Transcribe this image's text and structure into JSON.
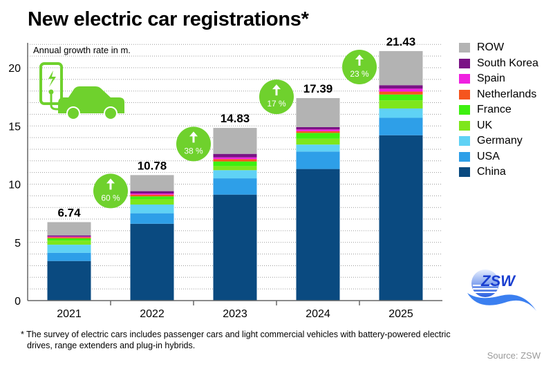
{
  "header": {
    "title": "New electric car registrations*"
  },
  "chart_data": {
    "type": "bar",
    "stacked": true,
    "title": "New electric car registrations*",
    "subtitle": "Annual growth rate in m.",
    "xlabel": "",
    "ylabel": "Annual growth rate in m.",
    "ylim": [
      0,
      22
    ],
    "yticks": [
      0,
      5,
      10,
      15,
      20
    ],
    "grid": true,
    "legend_position": "right",
    "categories": [
      "2021",
      "2022",
      "2023",
      "2024",
      "2025"
    ],
    "totals": [
      6.74,
      10.78,
      14.83,
      17.39,
      21.43
    ],
    "total_labels": [
      "6.74",
      "10.78",
      "14.83",
      "17.39",
      "21.43"
    ],
    "growth_rates": [
      {
        "between": [
          "2021",
          "2022"
        ],
        "label": "60 %"
      },
      {
        "between": [
          "2022",
          "2023"
        ],
        "label": "38 %"
      },
      {
        "between": [
          "2023",
          "2024"
        ],
        "label": "17 %"
      },
      {
        "between": [
          "2024",
          "2025"
        ],
        "label": "23 %"
      }
    ],
    "series": [
      {
        "name": "China",
        "color": "#0a4a80",
        "values": [
          3.4,
          6.6,
          9.1,
          11.3,
          14.2
        ]
      },
      {
        "name": "USA",
        "color": "#2e9fe8",
        "values": [
          0.7,
          0.9,
          1.4,
          1.5,
          1.5
        ]
      },
      {
        "name": "Germany",
        "color": "#5fd2f5",
        "values": [
          0.7,
          0.75,
          0.7,
          0.6,
          0.8
        ]
      },
      {
        "name": "UK",
        "color": "#7ee61c",
        "values": [
          0.35,
          0.45,
          0.35,
          0.5,
          0.7
        ]
      },
      {
        "name": "France",
        "color": "#3ef010",
        "values": [
          0.2,
          0.25,
          0.4,
          0.5,
          0.5
        ]
      },
      {
        "name": "Netherlands",
        "color": "#f5551e",
        "values": [
          0.1,
          0.15,
          0.2,
          0.15,
          0.25
        ]
      },
      {
        "name": "Spain",
        "color": "#f020e0",
        "values": [
          0.05,
          0.1,
          0.15,
          0.15,
          0.25
        ]
      },
      {
        "name": "South Korea",
        "color": "#7a1385",
        "values": [
          0.1,
          0.2,
          0.3,
          0.2,
          0.3
        ]
      },
      {
        "name": "ROW",
        "color": "#b3b3b3",
        "values": [
          1.14,
          1.38,
          2.23,
          2.49,
          2.93
        ]
      }
    ],
    "legend_order": [
      "ROW",
      "South Korea",
      "Spain",
      "Netherlands",
      "France",
      "UK",
      "Germany",
      "USA",
      "China"
    ]
  },
  "footnote": {
    "line1": "* The survey of electric cars includes passenger cars and light commercial vehicles with battery-powered electric",
    "line2": "drives, range extenders and plug-in hybrids."
  },
  "source": "Source: ZSW",
  "logo": {
    "text": "ZSW"
  },
  "icons": {
    "illustration": "ev-charging-car-icon",
    "growth": "arrow-up-icon"
  },
  "colors": {
    "badge": "#6fd12d",
    "axis": "#666666",
    "grid": "#9a9a9a"
  }
}
